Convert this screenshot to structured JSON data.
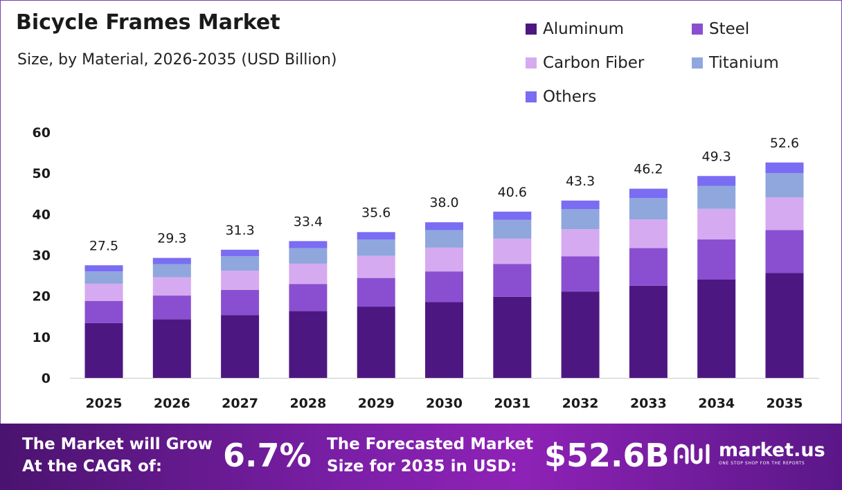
{
  "header": {
    "title": "Bicycle Frames Market",
    "subtitle": "Size, by Material, 2026-2035 (USD Billion)"
  },
  "legend": [
    {
      "label": "Aluminum",
      "color": "#4d1782"
    },
    {
      "label": "Steel",
      "color": "#8a4fd0"
    },
    {
      "label": "Carbon Fiber",
      "color": "#d6aaf0"
    },
    {
      "label": "Titanium",
      "color": "#8fa7dc"
    },
    {
      "label": "Others",
      "color": "#7a6cf3"
    }
  ],
  "chart_data": {
    "type": "bar",
    "stacked": true,
    "title": "Bicycle Frames Market",
    "subtitle": "Size, by Material, 2026-2035 (USD Billion)",
    "categories": [
      "2025",
      "2026",
      "2027",
      "2028",
      "2029",
      "2030",
      "2031",
      "2032",
      "2033",
      "2034",
      "2035"
    ],
    "series": [
      {
        "name": "Aluminum",
        "color": "#4d1782",
        "values": [
          13.4,
          14.3,
          15.3,
          16.3,
          17.4,
          18.5,
          19.8,
          21.1,
          22.5,
          24.0,
          25.6
        ]
      },
      {
        "name": "Steel",
        "color": "#8a4fd0",
        "values": [
          5.4,
          5.8,
          6.2,
          6.6,
          7.0,
          7.5,
          8.0,
          8.6,
          9.2,
          9.8,
          10.5
        ]
      },
      {
        "name": "Carbon Fiber",
        "color": "#d6aaf0",
        "values": [
          4.2,
          4.5,
          4.7,
          5.0,
          5.4,
          5.8,
          6.2,
          6.6,
          7.0,
          7.5,
          8.0
        ]
      },
      {
        "name": "Titanium",
        "color": "#8fa7dc",
        "values": [
          3.0,
          3.2,
          3.5,
          3.8,
          4.0,
          4.3,
          4.6,
          4.9,
          5.2,
          5.6,
          5.9
        ]
      },
      {
        "name": "Others",
        "color": "#7a6cf3",
        "values": [
          1.5,
          1.5,
          1.6,
          1.7,
          1.8,
          1.9,
          2.0,
          2.1,
          2.3,
          2.4,
          2.6
        ]
      }
    ],
    "totals": [
      "27.5",
      "29.3",
      "31.3",
      "33.4",
      "35.6",
      "38.0",
      "40.6",
      "43.3",
      "46.2",
      "49.3",
      "52.6"
    ],
    "yticks": [
      "0",
      "10",
      "20",
      "30",
      "40",
      "50",
      "60"
    ],
    "ylim": [
      0,
      60
    ],
    "grid": false,
    "legend_position": "top-right"
  },
  "footer": {
    "cagr_text_line1": "The Market will Grow",
    "cagr_text_line2": "At the CAGR of:",
    "cagr_value": "6.7%",
    "size_text_line1": "The Forecasted Market",
    "size_text_line2": "Size for 2035 in USD:",
    "size_value": "$52.6B",
    "brand_name": "market.us",
    "brand_tagline": "ONE STOP SHOP FOR THE REPORTS"
  }
}
